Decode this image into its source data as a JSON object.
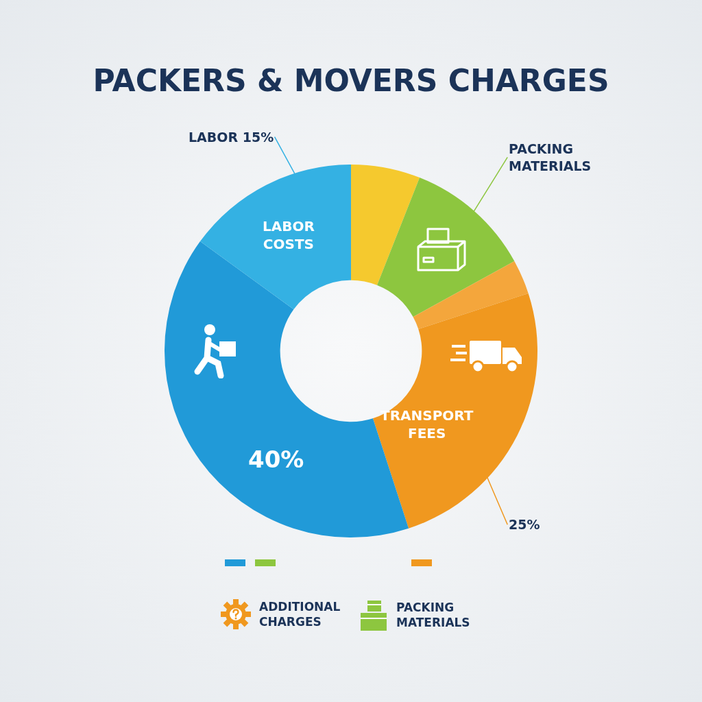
{
  "chart_data": {
    "type": "donut",
    "title": "PACKERS & MOVERS CHARGES",
    "categories": [
      null,
      "PACKING MATERIALS",
      null,
      "TRANSPORT FEES",
      null,
      "LABOR COSTS"
    ],
    "values": [
      6,
      11,
      3,
      25,
      40,
      15
    ],
    "colors": [
      "#f5c92e",
      "#8dc63f",
      "#f4a63c",
      "#f0981f",
      "#219ad8",
      "#34b1e3"
    ],
    "value_labels": [
      null,
      null,
      null,
      "25%",
      "40%",
      "LABOR 15%"
    ],
    "annotations": [
      "ADDITIONAL CHARGES",
      "PACKING MATERIALS"
    ],
    "legend": false
  }
}
